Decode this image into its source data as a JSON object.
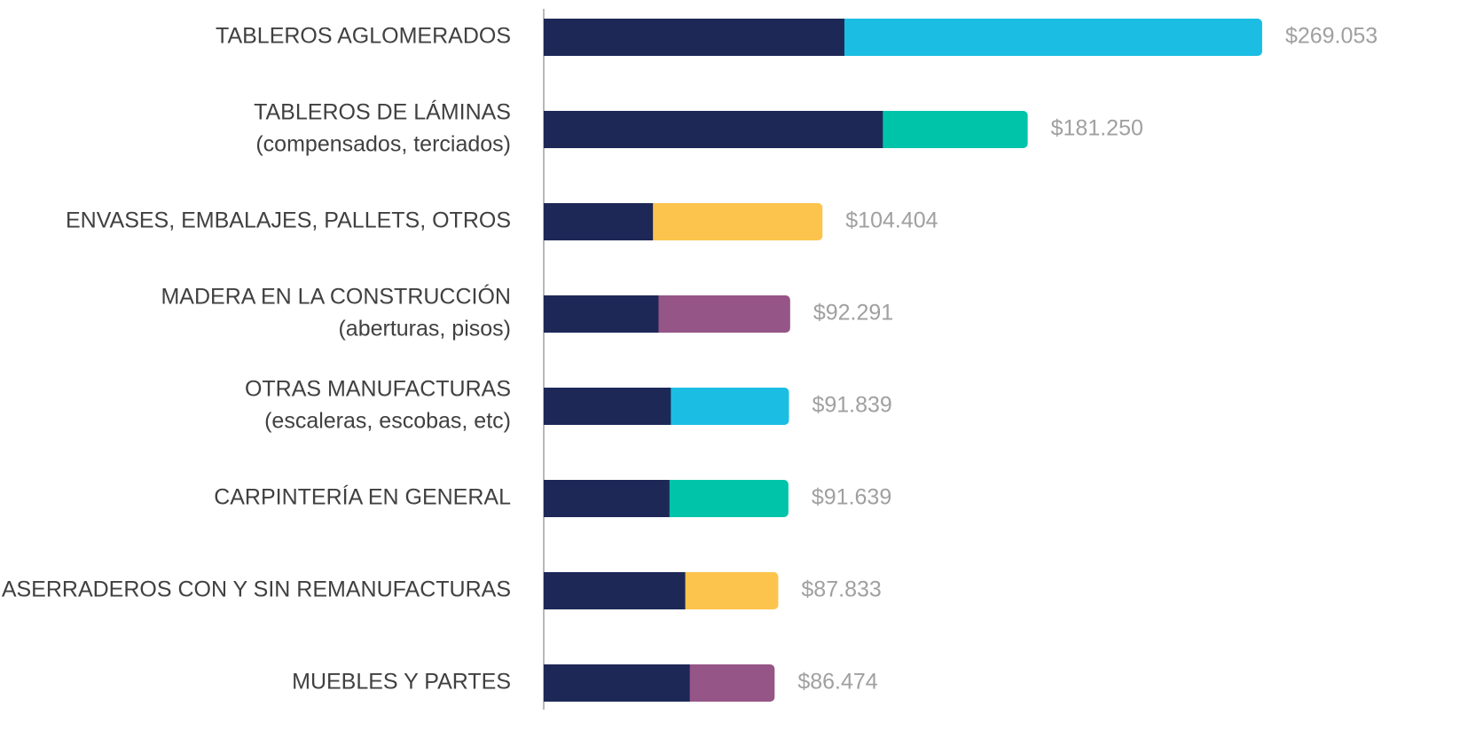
{
  "chart_data": {
    "type": "stacked-bar-horizontal",
    "categories": [
      [
        "TABLEROS AGLOMERADOS"
      ],
      [
        "TABLEROS DE LÁMINAS",
        "(compensados, terciados)"
      ],
      [
        "ENVASES, EMBALAJES, PALLETS, OTROS"
      ],
      [
        "MADERA EN LA CONSTRUCCIÓN",
        "(aberturas, pisos)"
      ],
      [
        "OTRAS MANUFACTURAS",
        "(escaleras, escobas, etc)"
      ],
      [
        "CARPINTERÍA EN GENERAL"
      ],
      [
        "ASERRADEROS CON Y SIN REMANUFACTURAS"
      ],
      [
        "MUEBLES Y PARTES"
      ]
    ],
    "base": {
      "color": "#1e2857",
      "values": [
        112600,
        127000,
        40900,
        43000,
        47600,
        47100,
        53000,
        54700
      ]
    },
    "totals": {
      "colors": [
        "#1bbde2",
        "#00c4aa",
        "#fcc44c",
        "#955586",
        "#1bbde2",
        "#00c4aa",
        "#fcc44c",
        "#955586"
      ],
      "values": [
        269053,
        181250,
        104404,
        92291,
        91839,
        91639,
        87833,
        86474
      ],
      "value_labels": [
        "$269.053",
        "$181.250",
        "$104.404",
        "$92.291",
        "$91.839",
        "$91.639",
        "$87.833",
        "$86.474"
      ]
    },
    "xlim": [
      0,
      290000
    ]
  }
}
